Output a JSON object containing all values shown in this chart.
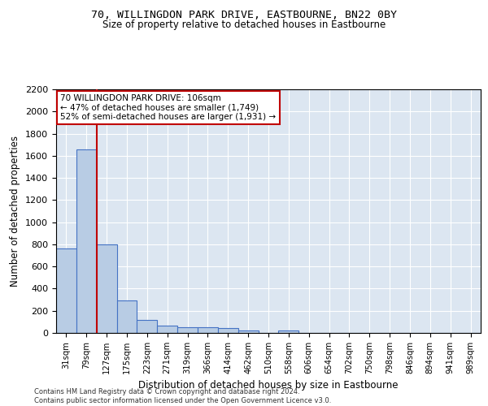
{
  "title_line1": "70, WILLINGDON PARK DRIVE, EASTBOURNE, BN22 0BY",
  "title_line2": "Size of property relative to detached houses in Eastbourne",
  "xlabel": "Distribution of detached houses by size in Eastbourne",
  "ylabel": "Number of detached properties",
  "categories": [
    "31sqm",
    "79sqm",
    "127sqm",
    "175sqm",
    "223sqm",
    "271sqm",
    "319sqm",
    "366sqm",
    "414sqm",
    "462sqm",
    "510sqm",
    "558sqm",
    "606sqm",
    "654sqm",
    "702sqm",
    "750sqm",
    "798sqm",
    "846sqm",
    "894sqm",
    "941sqm",
    "989sqm"
  ],
  "values": [
    760,
    1660,
    800,
    290,
    120,
    65,
    50,
    50,
    45,
    25,
    0,
    25,
    0,
    0,
    0,
    0,
    0,
    0,
    0,
    0,
    0
  ],
  "bar_color": "#b8cce4",
  "bar_edge_color": "#4472c4",
  "bar_linewidth": 0.8,
  "annotation_text": "70 WILLINGDON PARK DRIVE: 106sqm\n← 47% of detached houses are smaller (1,749)\n52% of semi-detached houses are larger (1,931) →",
  "vline_color": "#c00000",
  "annotation_box_edgecolor": "#c00000",
  "ylim_max": 2200,
  "yticks": [
    0,
    200,
    400,
    600,
    800,
    1000,
    1200,
    1400,
    1600,
    1800,
    2000,
    2200
  ],
  "background_color": "#dce6f1",
  "footer_line1": "Contains HM Land Registry data © Crown copyright and database right 2024.",
  "footer_line2": "Contains public sector information licensed under the Open Government Licence v3.0."
}
